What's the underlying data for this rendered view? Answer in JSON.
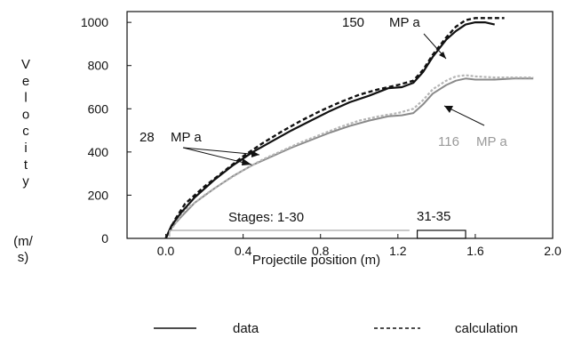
{
  "chart_data": {
    "type": "line",
    "xlabel": "Projectile position (m)",
    "ylabel_letters": [
      "V",
      "e",
      "l",
      "o",
      "c",
      "i",
      "t",
      "y"
    ],
    "ylabel_unit_lines": [
      "(m/",
      "s)"
    ],
    "xlim": [
      -0.2,
      2.0
    ],
    "ylim": [
      0,
      1050
    ],
    "x_ticks": [
      0.0,
      0.4,
      0.8,
      1.2,
      1.6,
      2.0
    ],
    "x_tick_labels": [
      "0.0",
      "0.4",
      "0.8",
      "1.2",
      "1.6",
      "2.0"
    ],
    "y_ticks": [
      0,
      200,
      400,
      600,
      800,
      1000
    ],
    "y_tick_labels": [
      "0",
      "200",
      "400",
      "600",
      "800",
      "1000"
    ],
    "grid": false,
    "series": [
      {
        "name": "data",
        "style": "solid",
        "color": "#111111",
        "x": [
          0.0,
          0.03,
          0.08,
          0.15,
          0.25,
          0.35,
          0.45,
          0.55,
          0.65,
          0.75,
          0.85,
          0.95,
          1.05,
          1.15,
          1.22,
          1.28,
          1.33,
          1.38,
          1.45,
          1.5,
          1.55,
          1.6,
          1.65,
          1.7
        ],
        "y": [
          0,
          60,
          120,
          190,
          270,
          340,
          400,
          450,
          500,
          545,
          590,
          630,
          660,
          695,
          700,
          720,
          770,
          840,
          920,
          960,
          990,
          1000,
          1000,
          990
        ]
      },
      {
        "name": "calculation",
        "style": "dashed",
        "color": "#111111",
        "x": [
          0.0,
          0.05,
          0.1,
          0.2,
          0.3,
          0.4,
          0.5,
          0.6,
          0.7,
          0.8,
          0.9,
          1.0,
          1.1,
          1.2,
          1.28,
          1.33,
          1.38,
          1.45,
          1.5,
          1.55,
          1.6,
          1.65,
          1.7,
          1.75
        ],
        "y": [
          0,
          90,
          160,
          240,
          310,
          380,
          440,
          495,
          545,
          590,
          630,
          665,
          690,
          710,
          730,
          780,
          850,
          930,
          980,
          1010,
          1020,
          1020,
          1020,
          1020
        ]
      },
      {
        "name": "",
        "style": "grey-data",
        "color": "#8a8a8a",
        "x": [
          0.0,
          0.03,
          0.08,
          0.15,
          0.25,
          0.35,
          0.45,
          0.55,
          0.65,
          0.75,
          0.85,
          0.95,
          1.05,
          1.15,
          1.22,
          1.28,
          1.33,
          1.38,
          1.45,
          1.5,
          1.55,
          1.6,
          1.7,
          1.8,
          1.9
        ],
        "y": [
          0,
          50,
          100,
          165,
          230,
          290,
          340,
          380,
          420,
          455,
          490,
          520,
          545,
          565,
          570,
          580,
          620,
          670,
          710,
          730,
          740,
          735,
          735,
          740,
          740
        ]
      },
      {
        "name": "",
        "style": "grey-calc",
        "color": "#b5b5b5",
        "x": [
          0.0,
          0.05,
          0.1,
          0.2,
          0.3,
          0.4,
          0.5,
          0.6,
          0.7,
          0.8,
          0.9,
          1.0,
          1.1,
          1.2,
          1.28,
          1.33,
          1.38,
          1.45,
          1.5,
          1.55,
          1.6,
          1.7,
          1.8,
          1.9
        ],
        "y": [
          0,
          70,
          130,
          200,
          260,
          315,
          365,
          405,
          445,
          480,
          515,
          545,
          565,
          580,
          600,
          640,
          690,
          730,
          750,
          755,
          750,
          745,
          745,
          745
        ]
      }
    ],
    "annotations": {
      "label_150": "150",
      "label_150_unit": "MP  a",
      "label_28": "28",
      "label_28_unit": "MP  a",
      "label_116": "116",
      "label_116_unit": "MP  a",
      "stages_a": "Stages: 1-30",
      "stages_b": "31-35"
    },
    "stage_bars": [
      {
        "from": 0.02,
        "to": 1.26,
        "color": "#b5b5b5"
      },
      {
        "from": 1.3,
        "to": 1.55,
        "color": "#111111"
      }
    ],
    "legend": {
      "placement": "bottom",
      "items": [
        {
          "label": "data",
          "style": "solid"
        },
        {
          "label": "calculation",
          "style": "dashed"
        }
      ]
    }
  }
}
